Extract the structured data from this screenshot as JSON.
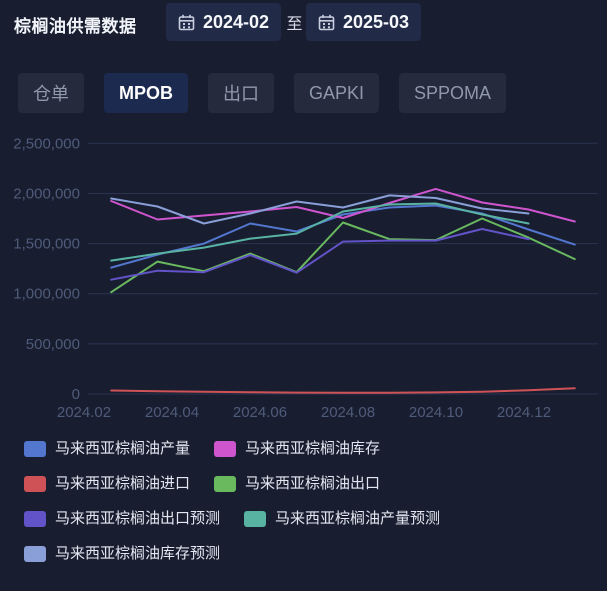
{
  "header": {
    "title": "棕榈油供需数据",
    "date_from": "2024-02",
    "date_separator": "至",
    "date_to": "2025-03"
  },
  "tabs": [
    {
      "label": "仓单",
      "active": false
    },
    {
      "label": "MPOB",
      "active": true
    },
    {
      "label": "出口",
      "active": false
    },
    {
      "label": "GAPKI",
      "active": false
    },
    {
      "label": "SPPOMA",
      "active": false
    }
  ],
  "colors": {
    "background": "#181e30",
    "panel_button": "#212a47",
    "tab_active": "#1d2a4f",
    "tab_inactive": "#252b3c",
    "gridline": "#2b3350",
    "axis_label": "#4f5b7a",
    "legend_text": "#e3e7f1"
  },
  "chart_data": {
    "type": "line",
    "title": "",
    "x": [
      "2024.02",
      "2024.03",
      "2024.04",
      "2024.05",
      "2024.06",
      "2024.07",
      "2024.08",
      "2024.09",
      "2024.10",
      "2024.11",
      "2024.12"
    ],
    "x_tick_labels": [
      "2024.02",
      "2024.04",
      "2024.06",
      "2024.08",
      "2024.10",
      "2024.12"
    ],
    "y_ticks": [
      0,
      500000,
      1000000,
      1500000,
      2000000,
      2500000
    ],
    "ylim": [
      0,
      2500000
    ],
    "grid": true,
    "legend_position": "bottom",
    "series": [
      {
        "name": "马来西亚棕榈油产量",
        "color": "#5377cf",
        "values": [
          1260000,
          1390000,
          1500000,
          1700000,
          1620000,
          1790000,
          1860000,
          1880000,
          1800000,
          1640000,
          1490000
        ]
      },
      {
        "name": "马来西亚棕榈油库存",
        "color": "#ce55ce",
        "values": [
          1925000,
          1740000,
          1780000,
          1820000,
          1865000,
          1755000,
          1905000,
          2045000,
          1910000,
          1840000,
          1720000
        ]
      },
      {
        "name": "马来西亚棕榈油进口",
        "color": "#cf5356",
        "values": [
          35000,
          28000,
          22000,
          18000,
          14000,
          12000,
          12000,
          16000,
          22000,
          38000,
          58000
        ]
      },
      {
        "name": "马来西亚棕榈油出口",
        "color": "#6ab95f",
        "values": [
          1015000,
          1320000,
          1225000,
          1400000,
          1215000,
          1710000,
          1545000,
          1535000,
          1750000,
          1560000,
          1345000
        ]
      },
      {
        "name": "马来西亚棕榈油出口预测",
        "color": "#6253c8",
        "values": [
          1140000,
          1230000,
          1215000,
          1385000,
          1210000,
          1520000,
          1530000,
          1530000,
          1645000,
          1545000
        ]
      },
      {
        "name": "马来西亚棕榈油产量预测",
        "color": "#58b3a3",
        "values": [
          1330000,
          1400000,
          1460000,
          1550000,
          1600000,
          1820000,
          1890000,
          1900000,
          1790000,
          1700000
        ]
      },
      {
        "name": "马来西亚棕榈油库存预测",
        "color": "#8a9ed8",
        "values": [
          1950000,
          1870000,
          1700000,
          1800000,
          1920000,
          1860000,
          1980000,
          1955000,
          1850000,
          1800000
        ]
      }
    ]
  }
}
